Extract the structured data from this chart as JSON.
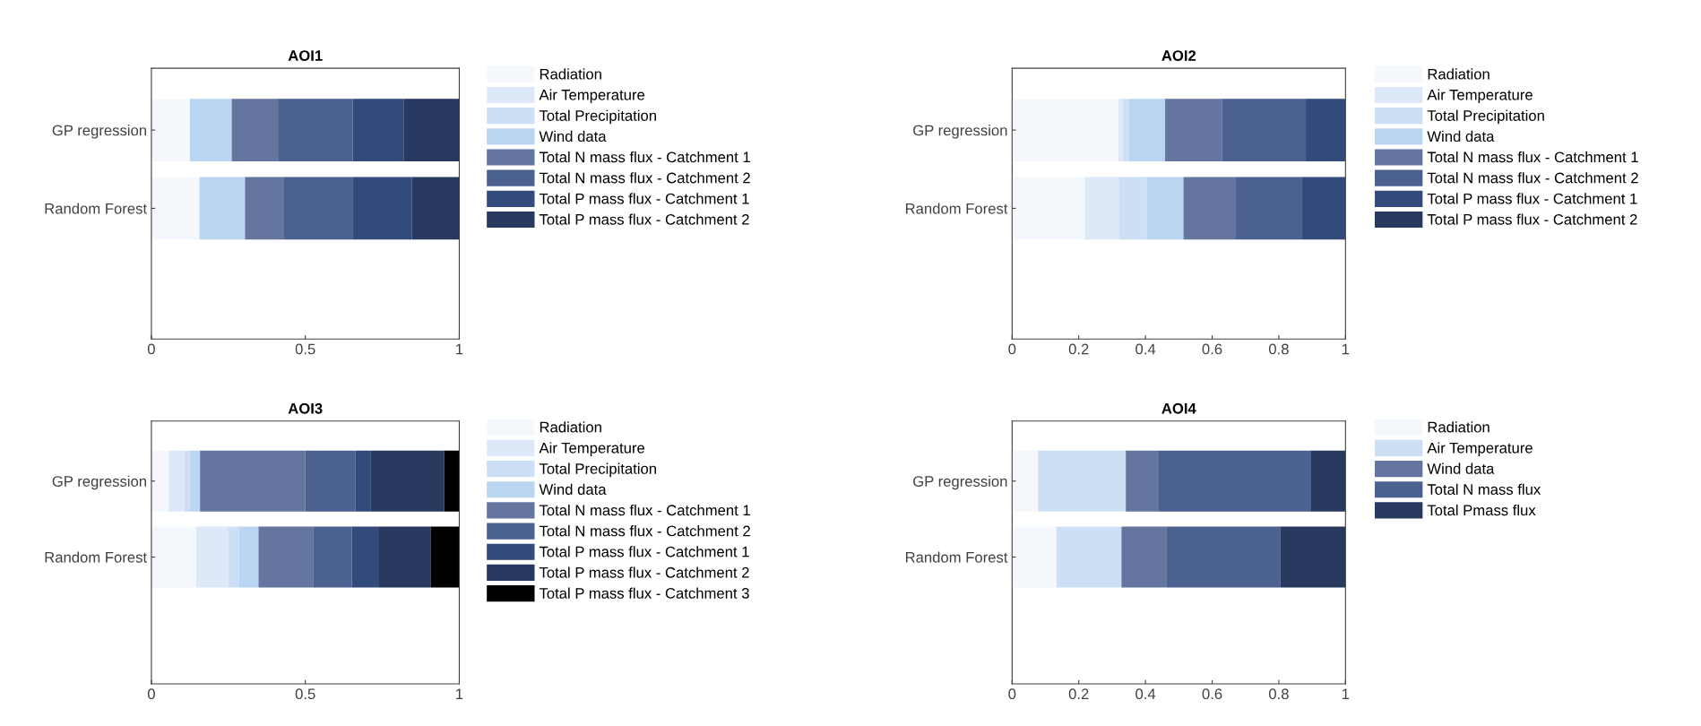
{
  "chart_data": [
    {
      "type": "bar",
      "orientation": "horizontal",
      "stacked": true,
      "title": "AOI1",
      "categories": [
        "GP regression",
        "Random Forest"
      ],
      "xlim": [
        0,
        1
      ],
      "xticks": [
        0,
        0.5,
        1
      ],
      "legend": "right",
      "grid": false,
      "series": [
        {
          "name": "Radiation",
          "color": "#f4f8fd",
          "values": [
            0.125,
            0.156
          ]
        },
        {
          "name": "Air Temperature",
          "color": "#dde9f9",
          "values": [
            0,
            0
          ]
        },
        {
          "name": "Total Precipitation",
          "color": "#cddff5",
          "values": [
            0,
            0
          ]
        },
        {
          "name": "Wind data",
          "color": "#bad5f2",
          "values": [
            0.136,
            0.148
          ]
        },
        {
          "name": "Total N mass flux - Catchment 1",
          "color": "#64769f",
          "values": [
            0.15,
            0.127
          ]
        },
        {
          "name": "Total N mass flux - Catchment 2",
          "color": "#4b6190",
          "values": [
            0.243,
            0.224
          ]
        },
        {
          "name": "Total P mass flux - Catchment 1",
          "color": "#334b7c",
          "values": [
            0.165,
            0.191
          ]
        },
        {
          "name": "Total P mass flux - Catchment 2",
          "color": "#27395f",
          "values": [
            0.181,
            0.154
          ]
        }
      ]
    },
    {
      "type": "bar",
      "orientation": "horizontal",
      "stacked": true,
      "title": "AOI2",
      "categories": [
        "GP regression",
        "Random Forest"
      ],
      "xlim": [
        0,
        1
      ],
      "xticks": [
        0,
        0.2,
        0.4,
        0.6,
        0.8,
        1
      ],
      "legend": "right",
      "grid": false,
      "series": [
        {
          "name": "Radiation",
          "color": "#f4f8fd",
          "values": [
            0.318,
            0.219
          ]
        },
        {
          "name": "Air Temperature",
          "color": "#dde9f9",
          "values": [
            0.015,
            0.102
          ]
        },
        {
          "name": "Total Precipitation",
          "color": "#cddff5",
          "values": [
            0.017,
            0.083
          ]
        },
        {
          "name": "Wind data",
          "color": "#bad5f2",
          "values": [
            0.109,
            0.11
          ]
        },
        {
          "name": "Total N mass flux - Catchment 1",
          "color": "#64769f",
          "values": [
            0.17,
            0.155
          ]
        },
        {
          "name": "Total N mass flux - Catchment 2",
          "color": "#4b6190",
          "values": [
            0.252,
            0.199
          ]
        },
        {
          "name": "Total P mass flux - Catchment 1",
          "color": "#334b7c",
          "values": [
            0.119,
            0.132
          ]
        },
        {
          "name": "Total P mass flux - Catchment 2",
          "color": "#27395f",
          "values": [
            0,
            0
          ]
        }
      ]
    },
    {
      "type": "bar",
      "orientation": "horizontal",
      "stacked": true,
      "title": "AOI3",
      "categories": [
        "GP regression",
        "Random Forest"
      ],
      "xlim": [
        0,
        1
      ],
      "xticks": [
        0,
        0.5,
        1
      ],
      "legend": "right",
      "grid": false,
      "series": [
        {
          "name": "Radiation",
          "color": "#f4f8fd",
          "values": [
            0.057,
            0.146
          ]
        },
        {
          "name": "Air Temperature",
          "color": "#dde9f9",
          "values": [
            0.051,
            0.103
          ]
        },
        {
          "name": "Total Precipitation",
          "color": "#cddff5",
          "values": [
            0.018,
            0.035
          ]
        },
        {
          "name": "Wind data",
          "color": "#bad5f2",
          "values": [
            0.032,
            0.064
          ]
        },
        {
          "name": "Total N mass flux - Catchment 1",
          "color": "#64769f",
          "values": [
            0.342,
            0.177
          ]
        },
        {
          "name": "Total N mass flux - Catchment 2",
          "color": "#4b6190",
          "values": [
            0.162,
            0.126
          ]
        },
        {
          "name": "Total P mass flux - Catchment 1",
          "color": "#334b7c",
          "values": [
            0.051,
            0.086
          ]
        },
        {
          "name": "Total P mass flux - Catchment 2",
          "color": "#27395f",
          "values": [
            0.238,
            0.171
          ]
        },
        {
          "name": "Total P mass flux - Catchment 3",
          "color": "#000000",
          "values": [
            0.049,
            0.092
          ]
        }
      ]
    },
    {
      "type": "bar",
      "orientation": "horizontal",
      "stacked": true,
      "title": "AOI4",
      "categories": [
        "GP regression",
        "Random Forest"
      ],
      "xlim": [
        0,
        1
      ],
      "xticks": [
        0,
        0.2,
        0.4,
        0.6,
        0.8,
        1
      ],
      "legend": "right",
      "grid": false,
      "series": [
        {
          "name": "Radiation",
          "color": "#f4f8fd",
          "values": [
            0.078,
            0.133
          ]
        },
        {
          "name": "Air Temperature",
          "color": "#cddff5",
          "values": [
            0.263,
            0.195
          ]
        },
        {
          "name": "Wind data",
          "color": "#64769f",
          "values": [
            0.099,
            0.136
          ]
        },
        {
          "name": "Total N mass flux",
          "color": "#4b6190",
          "values": [
            0.455,
            0.34
          ]
        },
        {
          "name": "Total Pmass flux",
          "color": "#27395f",
          "values": [
            0.105,
            0.196
          ]
        }
      ]
    }
  ]
}
